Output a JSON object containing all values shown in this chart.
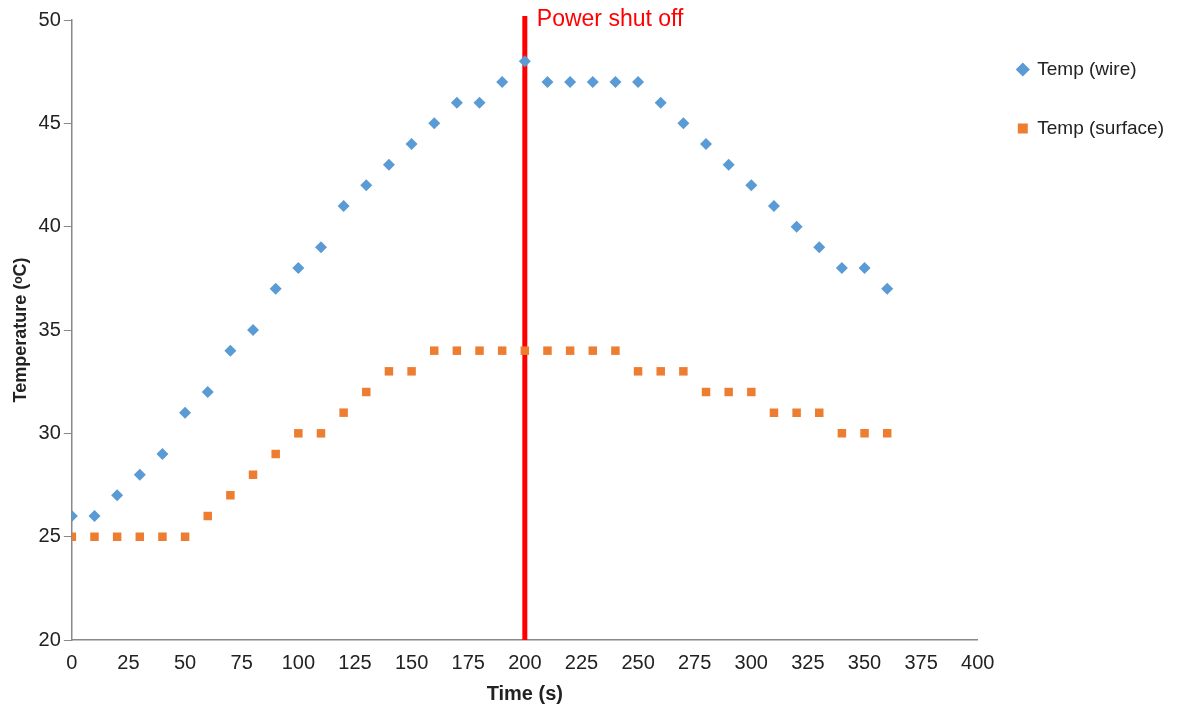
{
  "chart_data": {
    "type": "scatter",
    "xlabel": "Time (s)",
    "ylabel": "Temperature (ᵒC)",
    "x": [
      0,
      10,
      20,
      30,
      40,
      50,
      60,
      70,
      80,
      90,
      100,
      110,
      120,
      130,
      140,
      150,
      160,
      170,
      180,
      190,
      200,
      210,
      220,
      230,
      240,
      250,
      260,
      270,
      280,
      290,
      300,
      310,
      320,
      330,
      340,
      350,
      360
    ],
    "series": [
      {
        "name": "Temp (wire)",
        "color": "#5b9bd5",
        "marker": "diamond",
        "values": [
          26,
          26,
          27,
          28,
          29,
          31,
          32,
          34,
          35,
          37,
          38,
          39,
          41,
          42,
          43,
          44,
          45,
          46,
          46,
          47,
          48,
          47,
          47,
          47,
          47,
          47,
          46,
          45,
          44,
          43,
          42,
          41,
          40,
          39,
          38,
          38,
          37
        ]
      },
      {
        "name": "Temp (surface)",
        "color": "#ed7d31",
        "marker": "square",
        "values": [
          25,
          25,
          25,
          25,
          25,
          25,
          26,
          27,
          28,
          29,
          30,
          30,
          31,
          32,
          33,
          33,
          34,
          34,
          34,
          34,
          34,
          34,
          34,
          34,
          34,
          33,
          33,
          33,
          32,
          32,
          32,
          31,
          31,
          31,
          30,
          30,
          30
        ]
      }
    ],
    "xlim": [
      0,
      400
    ],
    "xticks": [
      0,
      25,
      50,
      75,
      100,
      125,
      150,
      175,
      200,
      225,
      250,
      275,
      300,
      325,
      350,
      375,
      400
    ],
    "ylim": [
      20,
      50
    ],
    "yticks": [
      20,
      25,
      30,
      35,
      40,
      45,
      50
    ],
    "grid": false,
    "legend": "top right",
    "ref_lines": [
      {
        "axis": "x",
        "value": 200,
        "label": "Power shut off",
        "color": "#ff0000"
      }
    ]
  }
}
